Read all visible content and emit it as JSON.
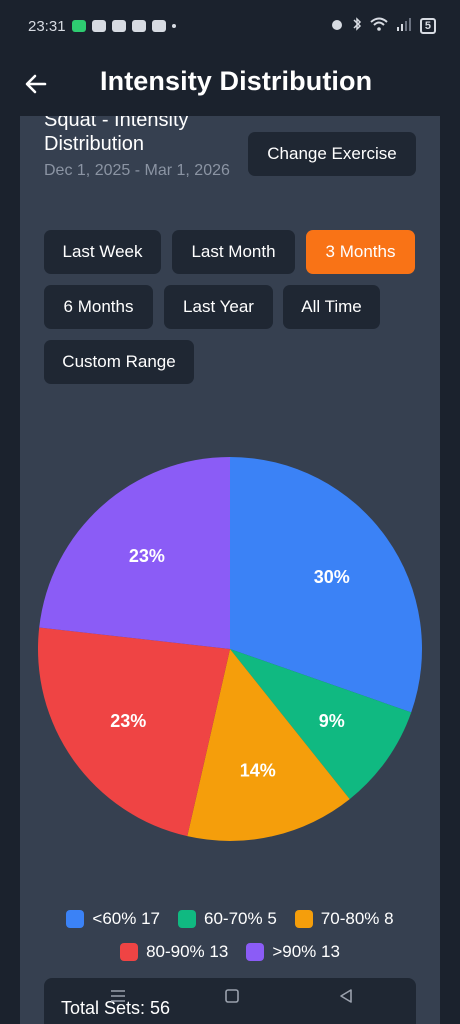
{
  "status_bar": {
    "time": "23:31",
    "battery": "5"
  },
  "app_bar": {
    "title": "Intensity Distribution"
  },
  "header": {
    "exercise_title": "Squat - Intensity Distribution",
    "date_range": "Dec 1, 2025 - Mar 1, 2026",
    "change_button": "Change Exercise"
  },
  "ranges": [
    {
      "label": "Last Week",
      "active": false
    },
    {
      "label": "Last Month",
      "active": false
    },
    {
      "label": "3 Months",
      "active": true
    },
    {
      "label": "6 Months",
      "active": false
    },
    {
      "label": "Last Year",
      "active": false
    },
    {
      "label": "All Time",
      "active": false
    },
    {
      "label": "Custom Range",
      "active": false
    }
  ],
  "colors": {
    "background": "#1b222d",
    "card": "#364050",
    "button": "#1f2733",
    "accent": "#f97316"
  },
  "chart_data": {
    "type": "pie",
    "categories": [
      "<60%",
      "60-70%",
      "70-80%",
      "80-90%",
      ">90%"
    ],
    "values": [
      17,
      5,
      8,
      13,
      13
    ],
    "percent_labels": [
      "30%",
      "9%",
      "14%",
      "23%",
      "23%"
    ],
    "colors": [
      "#3b82f6",
      "#10b981",
      "#f59e0b",
      "#ef4444",
      "#8b5cf6"
    ],
    "legend_labels": [
      "<60% 17",
      "60-70% 5",
      "70-80% 8",
      "80-90% 13",
      ">90% 13"
    ],
    "legend_placement": "bottom"
  },
  "summary": {
    "total_sets": "Total Sets: 56"
  }
}
